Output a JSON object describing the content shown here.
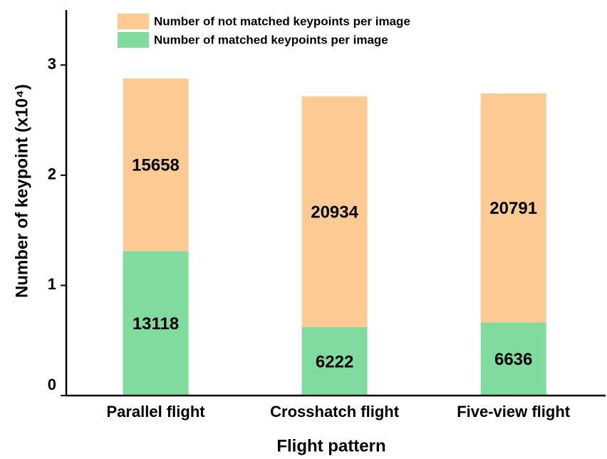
{
  "chart_data": {
    "type": "stacked_bar",
    "categories": [
      "Parallel flight",
      "Crosshatch flight",
      "Five-view flight"
    ],
    "series": [
      {
        "name": "Number of matched keypoints per image",
        "color": "#7fdc9e",
        "values": [
          1.3118,
          0.6222,
          0.6636
        ],
        "value_labels": [
          "13118",
          "6222",
          "6636"
        ]
      },
      {
        "name": "Number of not matched keypoints per image",
        "color": "#fdca94",
        "values": [
          1.5658,
          2.0934,
          2.0791
        ],
        "value_labels": [
          "15658",
          "20934",
          "20791"
        ]
      }
    ],
    "x_label": "Flight pattern",
    "y_label": "Number of keypoint (x10⁴)",
    "ylim": [
      0,
      3.5
    ],
    "yticks": [
      0,
      1,
      2,
      3
    ]
  }
}
